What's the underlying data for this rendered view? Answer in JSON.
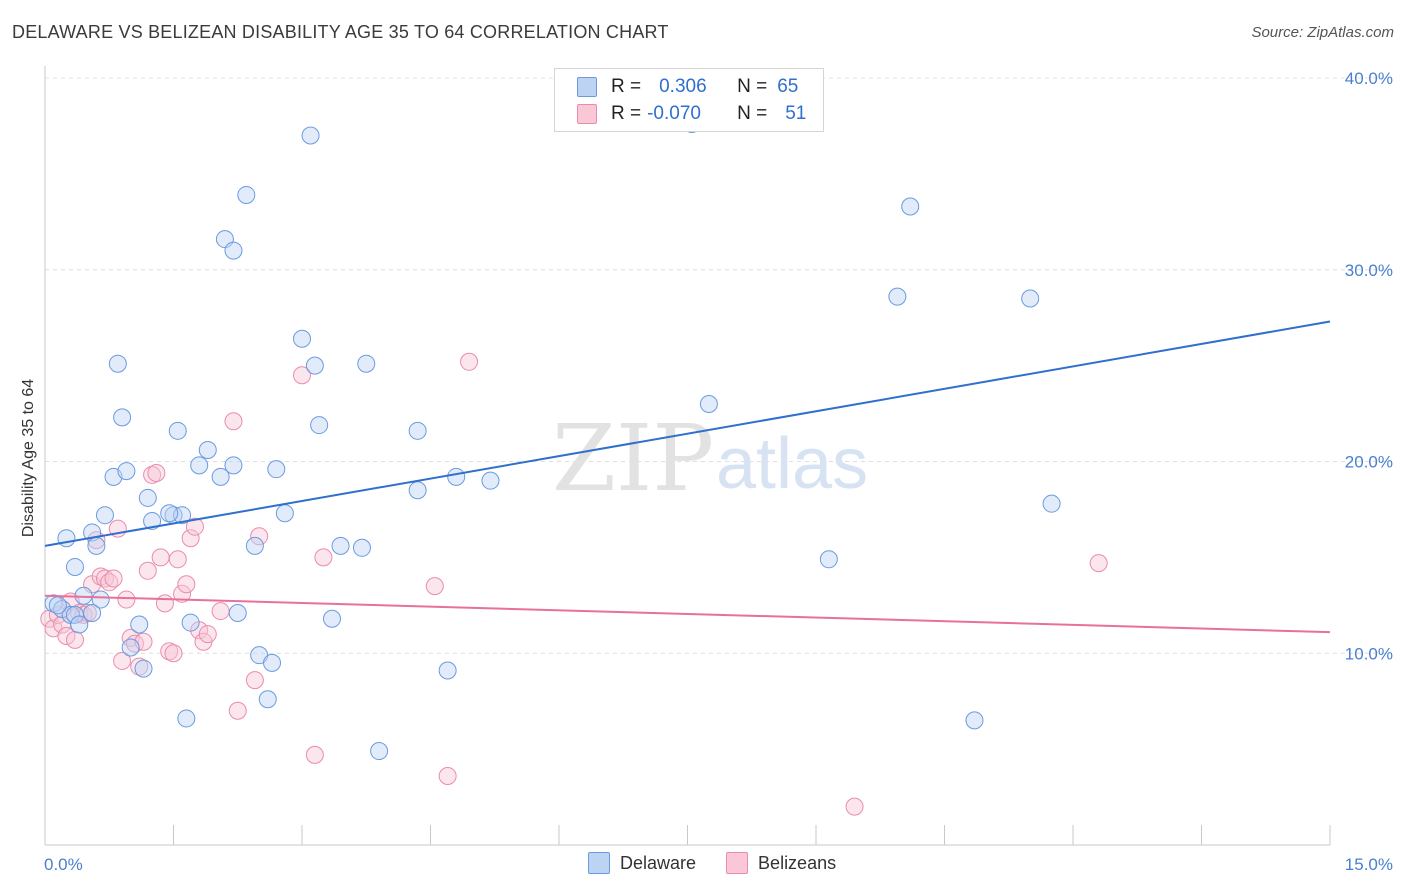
{
  "title": "DELAWARE VS BELIZEAN DISABILITY AGE 35 TO 64 CORRELATION CHART",
  "source": "Source: ZipAtlas.com",
  "watermark_zip": "ZIP",
  "watermark_atlas": "atlas",
  "legend": {
    "r_label": "R =",
    "n_label": "N =",
    "blue_r": "0.306",
    "blue_n": "65",
    "pink_r": "-0.070",
    "pink_n": "51"
  },
  "bottom_legend": {
    "blue": "Delaware",
    "pink": "Belizeans"
  },
  "colors": {
    "blue_line": "#2f6fcd",
    "pink_line": "#e8709a",
    "blue_fill": "#bcd3f4",
    "pink_fill": "#f9c7d6"
  },
  "chart_data": {
    "type": "scatter",
    "ylabel": "Disability Age 35 to 64",
    "xlim": [
      0,
      15
    ],
    "ylim": [
      0,
      40
    ],
    "x_tick_labels": [
      "0.0%",
      "15.0%"
    ],
    "y_ticks": [
      10,
      20,
      30,
      40
    ],
    "y_tick_labels": [
      "10.0%",
      "20.0%",
      "30.0%",
      "40.0%"
    ],
    "grid": true,
    "series": [
      {
        "name": "Delaware",
        "color": "#6a9be0",
        "trend": [
          [
            0,
            15.6
          ],
          [
            15,
            27.3
          ]
        ],
        "points": [
          [
            0.1,
            12.6
          ],
          [
            0.2,
            12.3
          ],
          [
            0.25,
            16.0
          ],
          [
            0.3,
            12.0
          ],
          [
            0.35,
            14.5
          ],
          [
            0.35,
            12.0
          ],
          [
            0.4,
            11.5
          ],
          [
            0.45,
            13.0
          ],
          [
            0.55,
            16.3
          ],
          [
            0.6,
            15.6
          ],
          [
            0.65,
            12.8
          ],
          [
            0.7,
            17.2
          ],
          [
            0.8,
            19.2
          ],
          [
            0.85,
            25.1
          ],
          [
            0.9,
            22.3
          ],
          [
            0.95,
            19.5
          ],
          [
            1.0,
            10.3
          ],
          [
            1.1,
            11.5
          ],
          [
            1.15,
            9.2
          ],
          [
            1.2,
            18.1
          ],
          [
            1.25,
            16.9
          ],
          [
            1.5,
            17.2
          ],
          [
            1.55,
            21.6
          ],
          [
            1.6,
            17.2
          ],
          [
            1.65,
            6.6
          ],
          [
            1.7,
            11.6
          ],
          [
            1.8,
            19.8
          ],
          [
            1.9,
            20.6
          ],
          [
            2.05,
            19.2
          ],
          [
            2.1,
            31.6
          ],
          [
            2.2,
            31.0
          ],
          [
            2.2,
            19.8
          ],
          [
            2.25,
            12.1
          ],
          [
            2.35,
            33.9
          ],
          [
            2.45,
            15.6
          ],
          [
            2.5,
            9.9
          ],
          [
            2.6,
            7.6
          ],
          [
            2.65,
            9.5
          ],
          [
            2.7,
            19.6
          ],
          [
            2.8,
            17.3
          ],
          [
            3.0,
            26.4
          ],
          [
            3.1,
            37.0
          ],
          [
            3.15,
            25.0
          ],
          [
            3.2,
            21.9
          ],
          [
            3.35,
            11.8
          ],
          [
            3.45,
            15.6
          ],
          [
            3.7,
            15.5
          ],
          [
            3.75,
            25.1
          ],
          [
            3.9,
            4.9
          ],
          [
            4.35,
            18.5
          ],
          [
            4.35,
            21.6
          ],
          [
            4.7,
            9.1
          ],
          [
            4.8,
            19.2
          ],
          [
            5.2,
            19.0
          ],
          [
            7.55,
            37.6
          ],
          [
            7.75,
            23.0
          ],
          [
            9.15,
            14.9
          ],
          [
            9.95,
            28.6
          ],
          [
            10.1,
            33.3
          ],
          [
            10.85,
            6.5
          ],
          [
            11.5,
            28.5
          ],
          [
            11.75,
            17.8
          ],
          [
            1.45,
            17.3
          ],
          [
            0.15,
            12.5
          ],
          [
            0.55,
            12.1
          ]
        ]
      },
      {
        "name": "Belizeans",
        "color": "#ea8cab",
        "trend": [
          [
            0,
            13.0
          ],
          [
            15,
            11.1
          ]
        ],
        "points": [
          [
            0.05,
            11.8
          ],
          [
            0.1,
            11.3
          ],
          [
            0.15,
            12.0
          ],
          [
            0.2,
            11.5
          ],
          [
            0.25,
            10.9
          ],
          [
            0.3,
            12.7
          ],
          [
            0.35,
            10.7
          ],
          [
            0.4,
            12.1
          ],
          [
            0.45,
            12.0
          ],
          [
            0.5,
            12.1
          ],
          [
            0.55,
            13.6
          ],
          [
            0.6,
            15.9
          ],
          [
            0.65,
            14.0
          ],
          [
            0.7,
            13.9
          ],
          [
            0.75,
            13.7
          ],
          [
            0.8,
            13.9
          ],
          [
            0.85,
            16.5
          ],
          [
            0.9,
            9.6
          ],
          [
            0.95,
            12.8
          ],
          [
            1.0,
            10.8
          ],
          [
            1.05,
            10.5
          ],
          [
            1.1,
            9.3
          ],
          [
            1.15,
            10.6
          ],
          [
            1.2,
            14.3
          ],
          [
            1.25,
            19.3
          ],
          [
            1.3,
            19.4
          ],
          [
            1.35,
            15.0
          ],
          [
            1.4,
            12.6
          ],
          [
            1.45,
            10.1
          ],
          [
            1.5,
            10.0
          ],
          [
            1.55,
            14.9
          ],
          [
            1.6,
            13.1
          ],
          [
            1.65,
            13.6
          ],
          [
            1.7,
            16.0
          ],
          [
            1.75,
            16.6
          ],
          [
            1.8,
            11.2
          ],
          [
            1.85,
            10.6
          ],
          [
            1.9,
            11.0
          ],
          [
            2.05,
            12.2
          ],
          [
            2.2,
            22.1
          ],
          [
            2.25,
            7.0
          ],
          [
            2.45,
            8.6
          ],
          [
            2.5,
            16.1
          ],
          [
            3.0,
            24.5
          ],
          [
            3.15,
            4.7
          ],
          [
            3.25,
            15.0
          ],
          [
            4.55,
            13.5
          ],
          [
            4.7,
            3.6
          ],
          [
            4.95,
            25.2
          ],
          [
            9.45,
            2.0
          ],
          [
            12.3,
            14.7
          ]
        ]
      }
    ]
  }
}
